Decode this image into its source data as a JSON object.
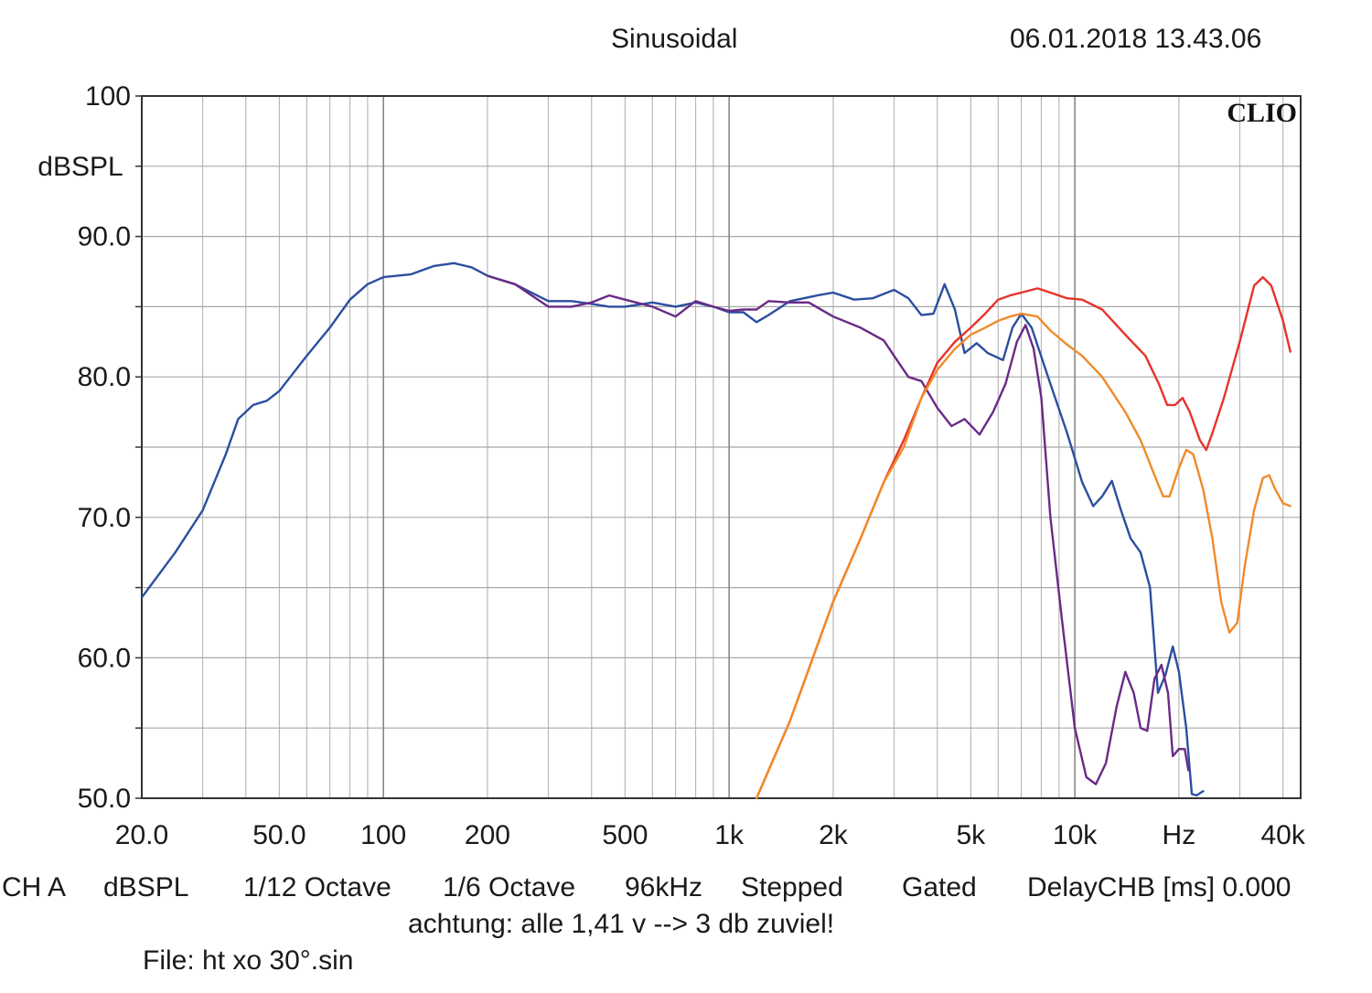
{
  "header": {
    "title": "Sinusoidal",
    "timestamp": "06.01.2018 13.43.06"
  },
  "brand": "CLIO",
  "chart_data": {
    "type": "line",
    "title": "Sinusoidal",
    "ylabel": "dBSPL",
    "xlabel": "Hz",
    "x_scale": "log",
    "xlim": [
      20,
      45000
    ],
    "ylim": [
      50,
      100
    ],
    "grid": true,
    "y_ticks": [
      "100",
      "90.0",
      "80.0",
      "70.0",
      "60.0",
      "50.0"
    ],
    "y_tick_values": [
      100,
      90,
      80,
      70,
      60,
      50
    ],
    "x_ticks": [
      "20.0",
      "50.0",
      "100",
      "200",
      "500",
      "1k",
      "2k",
      "5k",
      "10k",
      "Hz",
      "40k"
    ],
    "x_tick_values": [
      20,
      50,
      100,
      200,
      500,
      1000,
      2000,
      5000,
      10000,
      20000,
      40000
    ],
    "series": [
      {
        "color": "#2b4f9e",
        "points": [
          [
            20,
            64.3
          ],
          [
            25,
            67.5
          ],
          [
            30,
            70.5
          ],
          [
            35,
            74.5
          ],
          [
            38,
            77
          ],
          [
            42,
            78
          ],
          [
            46,
            78.3
          ],
          [
            50,
            79
          ],
          [
            60,
            81.5
          ],
          [
            70,
            83.5
          ],
          [
            80,
            85.5
          ],
          [
            90,
            86.6
          ],
          [
            100,
            87.1
          ],
          [
            120,
            87.3
          ],
          [
            140,
            87.9
          ],
          [
            160,
            88.1
          ],
          [
            180,
            87.8
          ],
          [
            200,
            87.2
          ],
          [
            240,
            86.6
          ],
          [
            300,
            85.4
          ],
          [
            350,
            85.4
          ],
          [
            400,
            85.2
          ],
          [
            450,
            85.0
          ],
          [
            500,
            85.0
          ],
          [
            600,
            85.3
          ],
          [
            700,
            85.0
          ],
          [
            800,
            85.3
          ],
          [
            900,
            85.0
          ],
          [
            1000,
            84.6
          ],
          [
            1100,
            84.6
          ],
          [
            1200,
            83.9
          ],
          [
            1300,
            84.4
          ],
          [
            1500,
            85.4
          ],
          [
            1800,
            85.8
          ],
          [
            2000,
            86.0
          ],
          [
            2300,
            85.5
          ],
          [
            2600,
            85.6
          ],
          [
            3000,
            86.2
          ],
          [
            3300,
            85.6
          ],
          [
            3600,
            84.4
          ],
          [
            3900,
            84.5
          ],
          [
            4200,
            86.6
          ],
          [
            4500,
            84.8
          ],
          [
            4800,
            81.7
          ],
          [
            5200,
            82.4
          ],
          [
            5600,
            81.7
          ],
          [
            6200,
            81.2
          ],
          [
            6600,
            83.5
          ],
          [
            7000,
            84.5
          ],
          [
            7500,
            83.5
          ],
          [
            8500,
            79.5
          ],
          [
            9500,
            76.0
          ],
          [
            10500,
            72.5
          ],
          [
            11300,
            70.8
          ],
          [
            12000,
            71.5
          ],
          [
            12800,
            72.6
          ],
          [
            13600,
            70.5
          ],
          [
            14500,
            68.5
          ],
          [
            15500,
            67.5
          ],
          [
            16500,
            65.0
          ],
          [
            17400,
            57.5
          ],
          [
            18300,
            58.8
          ],
          [
            19200,
            60.8
          ],
          [
            20000,
            59.0
          ],
          [
            21000,
            55.0
          ],
          [
            21800,
            50.3
          ],
          [
            22500,
            50.2
          ],
          [
            23500,
            50.5
          ]
        ]
      },
      {
        "color": "#6a2a86",
        "points": [
          [
            200,
            87.2
          ],
          [
            240,
            86.6
          ],
          [
            300,
            85.0
          ],
          [
            350,
            85.0
          ],
          [
            400,
            85.3
          ],
          [
            450,
            85.8
          ],
          [
            500,
            85.5
          ],
          [
            600,
            85.0
          ],
          [
            700,
            84.3
          ],
          [
            800,
            85.4
          ],
          [
            900,
            85.0
          ],
          [
            1000,
            84.7
          ],
          [
            1100,
            84.8
          ],
          [
            1200,
            84.8
          ],
          [
            1300,
            85.4
          ],
          [
            1500,
            85.3
          ],
          [
            1700,
            85.3
          ],
          [
            2000,
            84.3
          ],
          [
            2400,
            83.5
          ],
          [
            2800,
            82.6
          ],
          [
            3000,
            81.5
          ],
          [
            3300,
            80.0
          ],
          [
            3600,
            79.7
          ],
          [
            4000,
            77.8
          ],
          [
            4400,
            76.5
          ],
          [
            4800,
            77.0
          ],
          [
            5300,
            75.9
          ],
          [
            5800,
            77.5
          ],
          [
            6300,
            79.5
          ],
          [
            6800,
            82.5
          ],
          [
            7200,
            83.7
          ],
          [
            7600,
            82.0
          ],
          [
            8000,
            78.5
          ],
          [
            8500,
            70.0
          ],
          [
            9200,
            62.5
          ],
          [
            10000,
            55.0
          ],
          [
            10800,
            51.5
          ],
          [
            11500,
            51.0
          ],
          [
            12300,
            52.5
          ],
          [
            13200,
            56.5
          ],
          [
            14000,
            59.0
          ],
          [
            14800,
            57.5
          ],
          [
            15500,
            55.0
          ],
          [
            16200,
            54.8
          ],
          [
            17000,
            58.5
          ],
          [
            17800,
            59.5
          ],
          [
            18600,
            57.5
          ],
          [
            19200,
            53.0
          ],
          [
            20000,
            53.5
          ],
          [
            20800,
            53.5
          ],
          [
            21300,
            52.0
          ]
        ]
      },
      {
        "color": "#e8322a",
        "points": [
          [
            1200,
            50.0
          ],
          [
            1500,
            55.5
          ],
          [
            2000,
            64.0
          ],
          [
            2400,
            68.5
          ],
          [
            2800,
            72.5
          ],
          [
            3200,
            75.5
          ],
          [
            3600,
            78.5
          ],
          [
            4000,
            81.0
          ],
          [
            4500,
            82.5
          ],
          [
            5000,
            83.5
          ],
          [
            5500,
            84.5
          ],
          [
            6000,
            85.5
          ],
          [
            6500,
            85.8
          ],
          [
            7000,
            86.0
          ],
          [
            7800,
            86.3
          ],
          [
            8500,
            86.0
          ],
          [
            9500,
            85.6
          ],
          [
            10500,
            85.5
          ],
          [
            12000,
            84.8
          ],
          [
            14000,
            83.0
          ],
          [
            16000,
            81.5
          ],
          [
            17500,
            79.5
          ],
          [
            18500,
            78.0
          ],
          [
            19500,
            78.0
          ],
          [
            20500,
            78.5
          ],
          [
            21500,
            77.5
          ],
          [
            23000,
            75.5
          ],
          [
            24000,
            74.8
          ],
          [
            25000,
            76.0
          ],
          [
            27000,
            78.5
          ],
          [
            30000,
            82.5
          ],
          [
            33000,
            86.5
          ],
          [
            35000,
            87.1
          ],
          [
            37000,
            86.5
          ],
          [
            40000,
            84.0
          ],
          [
            42000,
            81.8
          ]
        ]
      },
      {
        "color": "#f08a2a",
        "points": [
          [
            1200,
            50.0
          ],
          [
            1500,
            55.5
          ],
          [
            2000,
            64.0
          ],
          [
            2400,
            68.5
          ],
          [
            2800,
            72.5
          ],
          [
            3200,
            75.0
          ],
          [
            3600,
            78.5
          ],
          [
            4000,
            80.5
          ],
          [
            4500,
            82.0
          ],
          [
            5000,
            83.0
          ],
          [
            5500,
            83.5
          ],
          [
            6000,
            84.0
          ],
          [
            6500,
            84.3
          ],
          [
            7000,
            84.5
          ],
          [
            7800,
            84.3
          ],
          [
            8500,
            83.3
          ],
          [
            9500,
            82.3
          ],
          [
            10500,
            81.5
          ],
          [
            12000,
            80.0
          ],
          [
            14000,
            77.5
          ],
          [
            15500,
            75.5
          ],
          [
            17000,
            73.0
          ],
          [
            18000,
            71.5
          ],
          [
            18800,
            71.5
          ],
          [
            20000,
            73.5
          ],
          [
            21000,
            74.8
          ],
          [
            22000,
            74.5
          ],
          [
            23500,
            72.0
          ],
          [
            25000,
            68.5
          ],
          [
            26500,
            64.0
          ],
          [
            28000,
            61.8
          ],
          [
            29500,
            62.5
          ],
          [
            31000,
            66.5
          ],
          [
            33000,
            70.5
          ],
          [
            35000,
            72.8
          ],
          [
            36500,
            73.0
          ],
          [
            38000,
            72.0
          ],
          [
            40000,
            71.0
          ],
          [
            42000,
            70.8
          ]
        ]
      }
    ]
  },
  "status_bar": [
    "CH A",
    "dBSPL",
    "1/12 Octave",
    "1/6 Octave",
    "96kHz",
    "Stepped",
    "Gated",
    "DelayCHB [ms] 0.000"
  ],
  "note": "achtung: alle 1,41 v --> 3 db zuviel!",
  "file": "File: ht xo 30°.sin"
}
